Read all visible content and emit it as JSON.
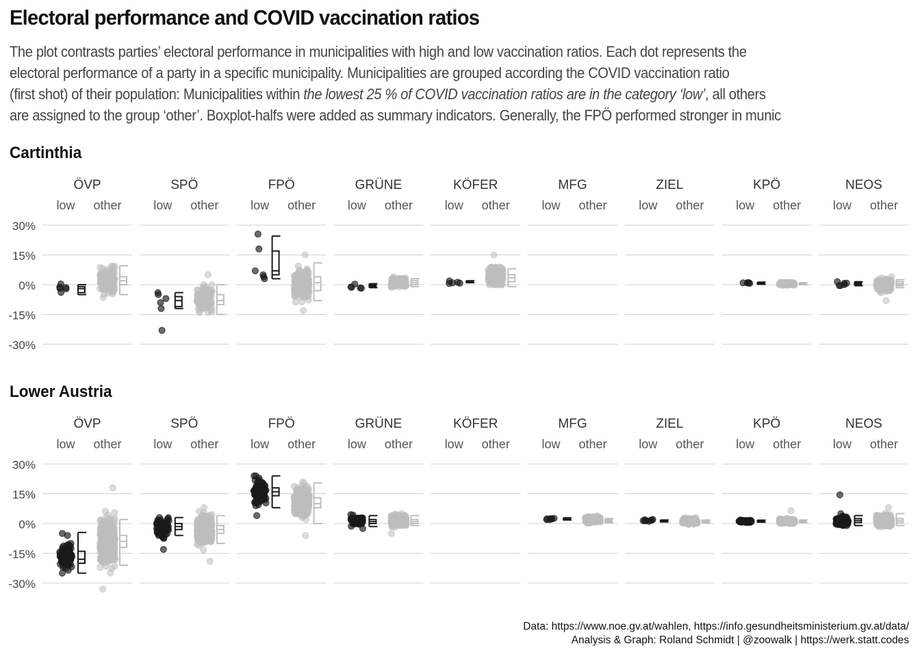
{
  "title": "Electoral performance and COVID vaccination ratios",
  "subtitle": {
    "line1": "The plot contrasts parties’ electoral performance in municipalities with high and low vaccination ratios. Each dot represents the",
    "line2": "electoral performance of a party in a specific municipality. Municipalities are grouped according the COVID vaccination ratio",
    "line3_a": "(first shot) of their population: Municipalities within ",
    "line3_b": "the lowest 25 % of COVID vaccination ratios are in the category ‘low’",
    "line3_c": ", all others",
    "line4": "are assigned to the group ‘other’. Boxplot-halfs were added as summary indicators. Generally, the FPÖ performed stronger in munic"
  },
  "caption": {
    "line1": "Data: https://www.noe.gv.at/wahlen, https://info.gesundheitsministerium.gv.at/data/",
    "line2": "Analysis & Graph: Roland Schmidt | @zoowalk | https://werk.statt.codes"
  },
  "colors": {
    "low": "#1a1a1a",
    "other": "#bdbdbd",
    "grid": "#d0d0d0",
    "text": "#444444"
  },
  "chart_data": {
    "type": "scatter",
    "parties": [
      "ÖVP",
      "SPÖ",
      "FPÖ",
      "GRÜNE",
      "KÖFER",
      "MFG",
      "ZIEL",
      "KPÖ",
      "NEOS"
    ],
    "groups": [
      "low",
      "other"
    ],
    "y_ticks": [
      "30%",
      "15%",
      "0%",
      "-15%",
      "-30%"
    ],
    "ylim": [
      -30,
      30
    ],
    "grid": true,
    "panels": [
      {
        "region": "Cartinthia",
        "series": {
          "ÖVP": {
            "low": {
              "n": 6,
              "center": -2,
              "spread": 1.8
            },
            "other": {
              "n": 150,
              "center": 2,
              "spread": 4
            },
            "low_box": [
              -5,
              -4,
              -2,
              -1,
              0
            ],
            "other_box": [
              -5,
              0,
              2,
              4,
              9.5
            ]
          },
          "SPÖ": {
            "low": {
              "n": 6,
              "center": -8,
              "spread": 3
            },
            "other": {
              "n": 150,
              "center": -7,
              "spread": 3.5,
              "min": -14,
              "max": 5
            },
            "low_box": [
              -12,
              -11,
              -8,
              -6,
              -4
            ],
            "other_box": [
              -15,
              -10,
              -8,
              -5,
              0
            ],
            "low_points": [
              -23,
              -12,
              -9,
              -7,
              -5,
              -4
            ]
          },
          "FPÖ": {
            "low": {
              "n": 6,
              "center": 10,
              "spread": 8
            },
            "other": {
              "n": 150,
              "center": 0,
              "spread": 5,
              "min": -13,
              "max": 15
            },
            "low_box": [
              3,
              5,
              7,
              17,
              24.5
            ],
            "other_box": [
              -8,
              -3,
              1,
              4,
              11
            ],
            "low_points": [
              3,
              4,
              5,
              7,
              18,
              25.5
            ]
          },
          "GRÜNE": {
            "low": {
              "n": 5,
              "center": -0.5,
              "spread": 1
            },
            "other": {
              "n": 150,
              "center": 1,
              "spread": 1.5
            },
            "low_box": [
              -1.5,
              -1,
              -0.5,
              0,
              0.5
            ],
            "other_box": [
              -1,
              0,
              1,
              2,
              3
            ]
          },
          "KÖFER": {
            "low": {
              "n": 5,
              "center": 1.5,
              "spread": 0.5
            },
            "other": {
              "n": 150,
              "center": 4,
              "spread": 3,
              "min": 0,
              "max": 15
            },
            "low_box": [
              1,
              1.2,
              1.5,
              1.8,
              2
            ],
            "other_box": [
              -1,
              1.5,
              3.5,
              5,
              8
            ]
          },
          "MFG": null,
          "ZIEL": null,
          "KPÖ": {
            "low": {
              "n": 5,
              "center": 0.8,
              "spread": 0.4
            },
            "other": {
              "n": 150,
              "center": 0.5,
              "spread": 0.4
            },
            "low_box": [
              0.2,
              0.5,
              0.8,
              1,
              1.3
            ],
            "other_box": [
              0,
              0.3,
              0.5,
              0.7,
              1
            ]
          },
          "NEOS": {
            "low": {
              "n": 6,
              "center": 0.5,
              "spread": 1
            },
            "other": {
              "n": 150,
              "center": 0,
              "spread": 2,
              "min": -8,
              "max": 4
            },
            "low_box": [
              -0.5,
              0,
              0.5,
              1,
              1.5
            ],
            "other_box": [
              -1.5,
              -0.5,
              0.5,
              1.5,
              2.5
            ]
          }
        }
      },
      {
        "region": "Lower Austria",
        "series": {
          "ÖVP": {
            "low": {
              "n": 90,
              "center": -17,
              "spread": 4.5,
              "min": -25,
              "max": -5
            },
            "other": {
              "n": 380,
              "center": -9,
              "spread": 6.5,
              "min": -33,
              "max": 18
            },
            "low_box": [
              -25,
              -20,
              -18,
              -14,
              -4.5
            ],
            "other_box": [
              -21,
              -12,
              -9,
              -6,
              2
            ]
          },
          "SPÖ": {
            "low": {
              "n": 90,
              "center": -2,
              "spread": 3,
              "min": -13,
              "max": 3
            },
            "other": {
              "n": 380,
              "center": -3,
              "spread": 4,
              "min": -19,
              "max": 8
            },
            "low_box": [
              -6,
              -3,
              -1.5,
              0,
              3
            ],
            "other_box": [
              -10,
              -5,
              -3,
              -1,
              4
            ]
          },
          "FPÖ": {
            "low": {
              "n": 90,
              "center": 16,
              "spread": 4,
              "min": 4,
              "max": 24
            },
            "other": {
              "n": 380,
              "center": 11,
              "spread": 4,
              "min": -6,
              "max": 21
            },
            "low_box": [
              8,
              14,
              16,
              18,
              24
            ],
            "other_box": [
              0,
              8,
              10,
              13,
              20.5
            ]
          },
          "GRÜNE": {
            "low": {
              "n": 90,
              "center": 1.5,
              "spread": 1.3,
              "min": -2.5,
              "max": 4.5
            },
            "other": {
              "n": 380,
              "center": 1.5,
              "spread": 1.5,
              "min": -5,
              "max": 5
            },
            "low_box": [
              -1.5,
              0,
              1,
              2,
              4
            ],
            "other_box": [
              -1,
              0,
              1,
              2,
              4
            ]
          },
          "KÖFER": null,
          "MFG": {
            "low": {
              "n": 6,
              "center": 2.5,
              "spread": 0.8
            },
            "other": {
              "n": 200,
              "center": 2,
              "spread": 0.9
            },
            "low_box": [
              1.8,
              2,
              2.3,
              2.6,
              2.9
            ],
            "other_box": [
              0.5,
              1,
              1.5,
              2,
              2.5
            ]
          },
          "ZIEL": {
            "low": {
              "n": 8,
              "center": 1.5,
              "spread": 0.5
            },
            "other": {
              "n": 200,
              "center": 1.2,
              "spread": 0.8
            },
            "low_box": [
              0.8,
              1,
              1.3,
              1.6,
              1.8
            ],
            "other_box": [
              0.3,
              0.7,
              1,
              1.4,
              1.8
            ]
          },
          "KPÖ": {
            "low": {
              "n": 60,
              "center": 1.2,
              "spread": 0.4
            },
            "other": {
              "n": 380,
              "center": 1.2,
              "spread": 0.6,
              "min": 0,
              "max": 6.5
            },
            "low_box": [
              0.7,
              1,
              1.2,
              1.4,
              1.7
            ],
            "other_box": [
              0.5,
              0.8,
              1.1,
              1.4,
              1.8
            ]
          },
          "NEOS": {
            "low": {
              "n": 90,
              "center": 1.5,
              "spread": 1.5,
              "min": -1,
              "max": 14.5
            },
            "other": {
              "n": 380,
              "center": 1.5,
              "spread": 1.6,
              "min": -1.5,
              "max": 8
            },
            "low_box": [
              -1,
              0.5,
              1.5,
              2.5,
              4
            ],
            "other_box": [
              -1,
              0.5,
              1.5,
              2.5,
              5
            ]
          }
        }
      }
    ]
  }
}
